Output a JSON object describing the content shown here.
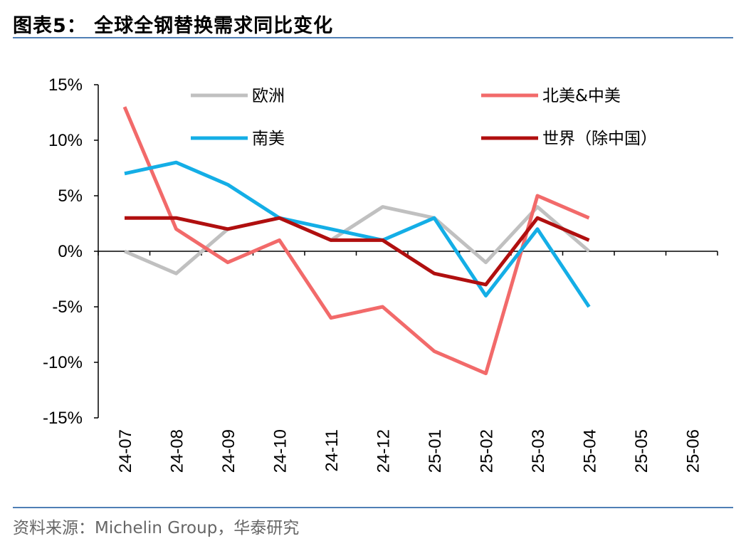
{
  "header": {
    "title": "图表5：  全球全钢替换需求同比变化"
  },
  "footer": {
    "source": "资料来源：Michelin Group，华泰研究"
  },
  "chart_data": {
    "type": "line",
    "title": "图表5：  全球全钢替换需求同比变化",
    "xlabel": "",
    "ylabel": "",
    "ylim": [
      -15,
      15
    ],
    "yticks": [
      "15%",
      "10%",
      "5%",
      "0%",
      "-5%",
      "-10%",
      "-15%"
    ],
    "ytick_values": [
      15,
      10,
      5,
      0,
      -5,
      -10,
      -15
    ],
    "categories": [
      "24-07",
      "24-08",
      "24-09",
      "24-10",
      "24-11",
      "24-12",
      "25-01",
      "25-02",
      "25-03",
      "25-04",
      "25-05",
      "25-06"
    ],
    "grid": false,
    "legend_position": "top",
    "series": [
      {
        "name": "欧洲",
        "color": "#c0c0c0",
        "values": [
          0,
          -2,
          2,
          3,
          1,
          4,
          3,
          -1,
          4,
          0,
          null,
          null
        ]
      },
      {
        "name": "北美&中美",
        "color": "#f26a6a",
        "values": [
          13,
          2,
          -1,
          1,
          -6,
          -5,
          -9,
          -11,
          5,
          3,
          null,
          null
        ]
      },
      {
        "name": "南美",
        "color": "#14aee6",
        "values": [
          7,
          8,
          6,
          3,
          2,
          1,
          3,
          -4,
          2,
          -5,
          null,
          null
        ]
      },
      {
        "name": "世界（除中国）",
        "color": "#b00f0f",
        "values": [
          3,
          3,
          2,
          3,
          1,
          1,
          -2,
          -3,
          3,
          1,
          null,
          null
        ]
      }
    ]
  }
}
